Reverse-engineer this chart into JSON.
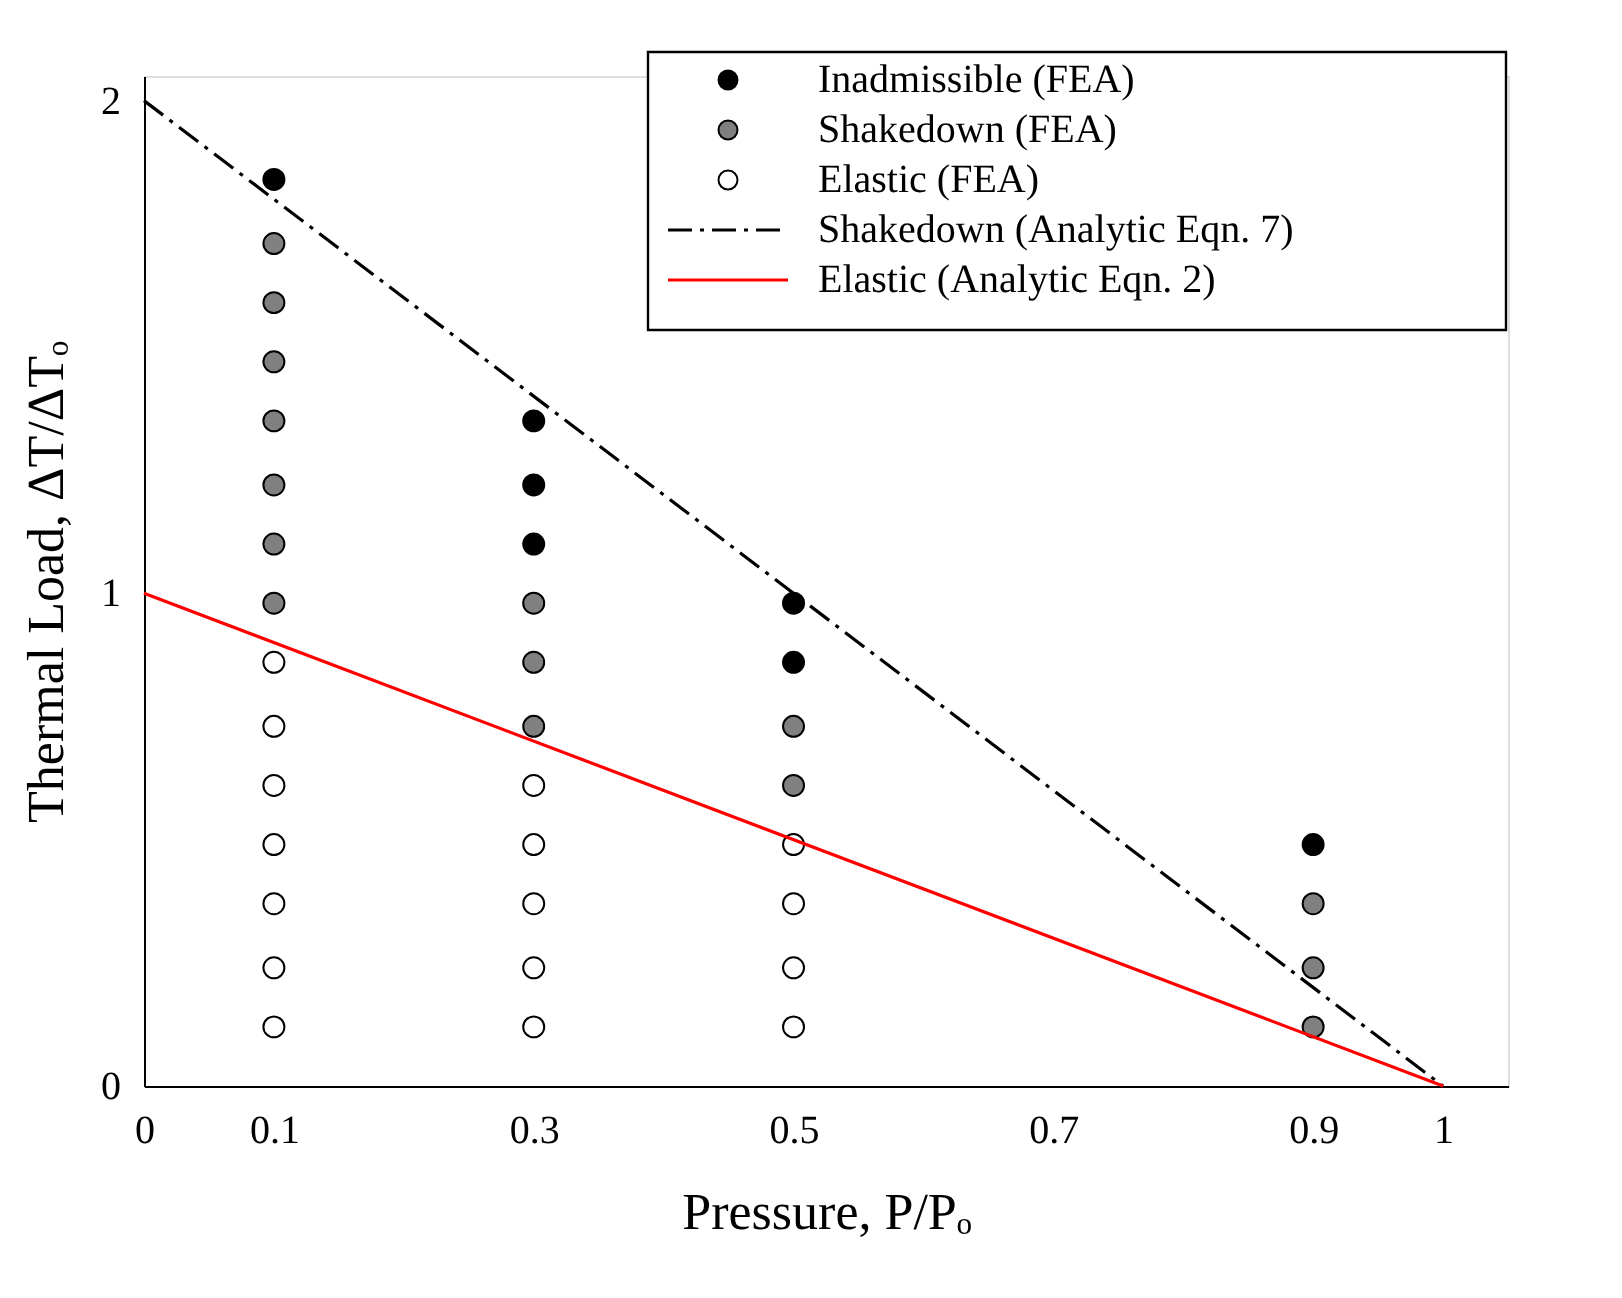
{
  "chart_data": {
    "type": "scatter",
    "xlabel": "Pressure, P/Pₒ",
    "ylabel": "Thermal Load, ΔT/ΔTₒ",
    "xlim": [
      0,
      1.05
    ],
    "ylim": [
      0,
      2.05
    ],
    "xticks": [
      0,
      0.1,
      0.3,
      0.5,
      0.7,
      0.9,
      1
    ],
    "yticks": [
      0,
      1,
      2
    ],
    "grid": false,
    "legend": "top right",
    "marker": "circle",
    "series": [
      {
        "name": "Inadmissible (FEA)",
        "color": "#000000",
        "x": [
          0.1,
          0.3,
          0.3,
          0.3,
          0.5,
          0.5,
          0.9
        ],
        "values": [
          1.84,
          1.35,
          1.22,
          1.1,
          0.98,
          0.86,
          0.49
        ]
      },
      {
        "name": "Shakedown (FEA)",
        "color": "#808080",
        "x": [
          0.1,
          0.1,
          0.1,
          0.1,
          0.1,
          0.1,
          0.1,
          0.3,
          0.3,
          0.3,
          0.5,
          0.5,
          0.9,
          0.9,
          0.9
        ],
        "values": [
          1.71,
          1.59,
          1.47,
          1.35,
          1.22,
          1.1,
          0.98,
          0.98,
          0.86,
          0.73,
          0.73,
          0.61,
          0.37,
          0.24,
          0.12
        ]
      },
      {
        "name": "Elastic (FEA)",
        "color": "#ffffff",
        "x": [
          0.1,
          0.1,
          0.1,
          0.1,
          0.1,
          0.1,
          0.1,
          0.3,
          0.3,
          0.3,
          0.3,
          0.3,
          0.5,
          0.5,
          0.5,
          0.5
        ],
        "values": [
          0.86,
          0.73,
          0.61,
          0.49,
          0.37,
          0.24,
          0.12,
          0.61,
          0.49,
          0.37,
          0.24,
          0.12,
          0.49,
          0.37,
          0.24,
          0.12
        ]
      },
      {
        "name": "Shakedown (Analytic Eqn. 7)",
        "type": "line",
        "color": "#000000",
        "line_style": "dashdot",
        "marker": "none",
        "x": [
          0,
          1
        ],
        "values": [
          2,
          0
        ]
      },
      {
        "name": "Elastic (Analytic Eqn. 2)",
        "type": "line",
        "color": "#ff0000",
        "line_style": "solid",
        "marker": "none",
        "x": [
          0,
          1
        ],
        "values": [
          1,
          0
        ]
      }
    ]
  }
}
